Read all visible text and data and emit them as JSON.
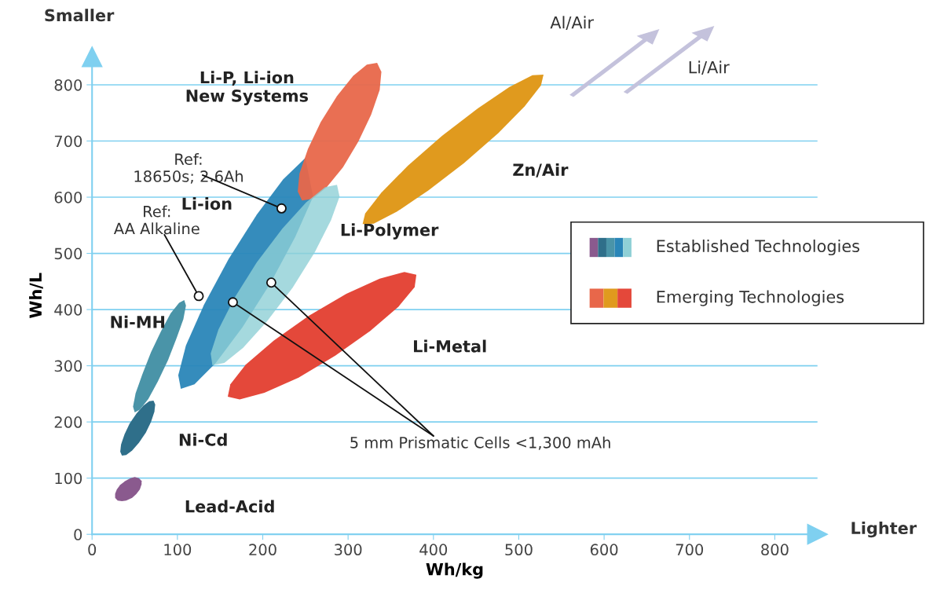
{
  "chart_data": {
    "type": "area",
    "xlabel": "Wh/kg",
    "ylabel": "Wh/L",
    "xlim": [
      0,
      850
    ],
    "ylim": [
      0,
      850
    ],
    "xticks": [
      0,
      100,
      200,
      300,
      400,
      500,
      600,
      700,
      800
    ],
    "yticks": [
      0,
      100,
      200,
      300,
      400,
      500,
      600,
      700,
      800
    ],
    "grid": "y",
    "series": [
      {
        "name": "Lead-Acid",
        "color": "#8a5a8e",
        "x": [
          30,
          27,
          27,
          29,
          33,
          39,
          45,
          50,
          55,
          58,
          58,
          56,
          52,
          47,
          40,
          35
        ],
        "values": [
          60,
          65,
          72,
          80,
          88,
          95,
          100,
          102,
          100,
          95,
          89,
          80,
          72,
          65,
          60,
          59
        ]
      },
      {
        "name": "Ni-Cd",
        "color": "#2f6f8a",
        "x": [
          35,
          40,
          47,
          55,
          63,
          69,
          73,
          74,
          72,
          67,
          60,
          52,
          44,
          38,
          34,
          33
        ],
        "values": [
          140,
          141,
          149,
          163,
          181,
          200,
          218,
          231,
          238,
          237,
          229,
          215,
          197,
          178,
          160,
          147
        ]
      },
      {
        "name": "Ni-MH",
        "color": "#4a94a8",
        "x": [
          50,
          56,
          66,
          77,
          89,
          99,
          107,
          110,
          108,
          102,
          92,
          81,
          69,
          59,
          51,
          48
        ],
        "values": [
          217,
          222,
          241,
          272,
          310,
          349,
          383,
          407,
          417,
          412,
          393,
          362,
          324,
          285,
          251,
          227
        ]
      },
      {
        "name": "Li-ion",
        "color": "#2a86b8",
        "x": [
          104,
          120,
          145,
          176,
          209,
          238,
          259,
          null,
          null,
          250,
          224,
          193,
          160,
          131,
          110,
          101
        ],
        "values": [
          259,
          267,
          305,
          368,
          447,
          529,
          601,
          null,
          null,
          670,
          632,
          569,
          490,
          408,
          336,
          283
        ]
      },
      {
        "name": "Li-Polymer",
        "color": "#8fd0d6",
        "x": [
          141,
          155,
          177,
          205,
          235,
          261,
          280,
          290,
          287,
          273,
          251,
          223,
          193,
          167,
          148,
          139
        ],
        "values": [
          301,
          305,
          332,
          379,
          439,
          502,
          559,
          601,
          622,
          618,
          591,
          544,
          484,
          421,
          364,
          322
        ]
      },
      {
        "name": "Li-P, Li-ion\nNew Systems",
        "color": "#e8674a",
        "x": [
          246,
          258,
          275,
          294,
          312,
          327,
          337,
          339,
          334,
          322,
          306,
          287,
          268,
          253,
          243,
          241
        ],
        "values": [
          594,
          597,
          618,
          653,
          699,
          747,
          791,
          823,
          839,
          836,
          816,
          780,
          734,
          686,
          642,
          610
        ]
      },
      {
        "name": "Zn/Air",
        "color": "#e09a1e",
        "x": [
          317,
          330,
          357,
          394,
          436,
          476,
          507,
          526,
          529,
          516,
          489,
          452,
          410,
          370,
          339,
          320
        ],
        "values": [
          552,
          553,
          574,
          612,
          661,
          714,
          762,
          799,
          818,
          817,
          796,
          758,
          709,
          656,
          608,
          571
        ]
      },
      {
        "name": "Li-Metal",
        "color": "#e4483a",
        "x": [
          159,
          173,
          202,
          242,
          285,
          326,
          359,
          378,
          380,
          366,
          337,
          298,
          254,
          213,
          180,
          162
        ],
        "values": [
          245,
          240,
          252,
          279,
          318,
          362,
          405,
          440,
          462,
          467,
          455,
          428,
          389,
          345,
          302,
          267
        ]
      }
    ],
    "annotations": [
      {
        "text": "Ref:\nAA Alkaline",
        "x": 125,
        "y": 424
      },
      "Ref:\n18650s; 2.6Ah",
      {
        "text": "5 mm Prismatic Cells <1,300 mAh",
        "x": 165,
        "y": 413
      },
      "Smaller",
      "Lighter",
      "Al/Air",
      "Li/Air",
      "Established Technologies",
      "Emerging Technologies"
    ]
  }
}
